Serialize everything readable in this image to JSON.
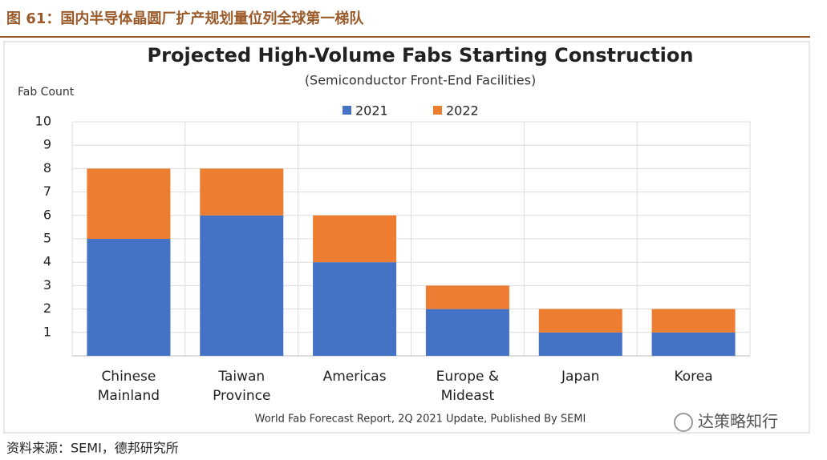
{
  "caption": "图 61：国内半导体晶圆厂扩产规划量位列全球第一梯队",
  "chart_data": {
    "type": "stacked_bar",
    "title": "Projected High-Volume Fabs Starting Construction",
    "subtitle": "(Semiconductor Front-End Facilities)",
    "y_label": "Fab Count",
    "categories": [
      "Chinese Mainland",
      "Taiwan Province",
      "Americas",
      "Europe & Mideast",
      "Japan",
      "Korea"
    ],
    "series": [
      {
        "name": "2021",
        "color": "#4472c4",
        "values": [
          5,
          6,
          4,
          2,
          1,
          1
        ]
      },
      {
        "name": "2022",
        "color": "#ed7d31",
        "values": [
          3,
          2,
          2,
          1,
          1,
          1
        ]
      }
    ],
    "ylim": [
      0,
      10
    ],
    "yticks": [
      1,
      2,
      3,
      4,
      5,
      6,
      7,
      8,
      9,
      10
    ],
    "grid": true,
    "legend": "top",
    "note": "World Fab Forecast Report, 2Q 2021 Update, Published By SEMI"
  },
  "source": "资料来源：SEMI，德邦研究所",
  "watermark": "达策略知行"
}
